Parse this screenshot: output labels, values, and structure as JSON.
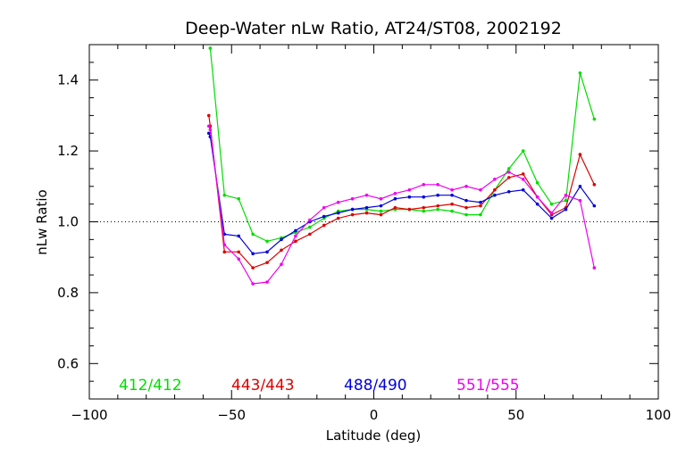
{
  "chart_data": {
    "type": "line",
    "title": "Deep-Water nLw Ratio, AT24/ST08, 2002192",
    "xlabel": "Latitude (deg)",
    "ylabel": "nLw Ratio",
    "xlim": [
      -100,
      100
    ],
    "ylim": [
      0.5,
      1.5
    ],
    "xticks": [
      -100,
      -50,
      0,
      50,
      100
    ],
    "xtick_labels": [
      "−100",
      "−50",
      "0",
      "50",
      "100"
    ],
    "yticks": [
      0.6,
      0.8,
      1.0,
      1.2,
      1.4
    ],
    "ytick_labels": [
      "0.6",
      "0.8",
      "1.0",
      "1.2",
      "1.4"
    ],
    "reference_line": 1.0,
    "grid": false,
    "legend_placement": "bottom, inside plot",
    "series": [
      {
        "name": "412/412",
        "color": "#00dd00",
        "x": [
          -57.5,
          -52.5,
          -47.5,
          -42.5,
          -37.5,
          -32.5,
          -27.5,
          -22.5,
          -17.5,
          -12.5,
          -7.5,
          -2.5,
          2.5,
          7.5,
          12.5,
          17.5,
          22.5,
          27.5,
          32.5,
          37.5,
          42.5,
          47.5,
          52.5,
          57.5,
          62.5,
          67.5,
          72.5,
          77.5
        ],
        "y": [
          1.49,
          1.075,
          1.065,
          0.965,
          0.945,
          0.955,
          0.97,
          0.985,
          1.01,
          1.03,
          1.035,
          1.035,
          1.03,
          1.035,
          1.035,
          1.03,
          1.035,
          1.03,
          1.02,
          1.02,
          1.09,
          1.15,
          1.2,
          1.11,
          1.05,
          1.06,
          1.42,
          1.29
        ]
      },
      {
        "name": "443/443",
        "color": "#dd0000",
        "x": [
          -58,
          -57.5,
          -52.5,
          -47.5,
          -42.5,
          -37.5,
          -32.5,
          -27.5,
          -22.5,
          -17.5,
          -12.5,
          -7.5,
          -2.5,
          2.5,
          7.5,
          12.5,
          17.5,
          22.5,
          27.5,
          32.5,
          37.5,
          42.5,
          47.5,
          52.5,
          57.5,
          62.5,
          67.5,
          72.5,
          77.5
        ],
        "y": [
          1.3,
          1.27,
          0.915,
          0.915,
          0.87,
          0.885,
          0.92,
          0.945,
          0.965,
          0.99,
          1.01,
          1.02,
          1.025,
          1.02,
          1.04,
          1.035,
          1.04,
          1.045,
          1.05,
          1.04,
          1.045,
          1.09,
          1.125,
          1.135,
          1.07,
          1.02,
          1.04,
          1.19,
          1.105
        ]
      },
      {
        "name": "488/490",
        "color": "#0000dd",
        "x": [
          -58,
          -57.5,
          -52.5,
          -47.5,
          -42.5,
          -37.5,
          -32.5,
          -27.5,
          -22.5,
          -17.5,
          -12.5,
          -7.5,
          -2.5,
          2.5,
          7.5,
          12.5,
          17.5,
          22.5,
          27.5,
          32.5,
          37.5,
          42.5,
          47.5,
          52.5,
          57.5,
          62.5,
          67.5,
          72.5,
          77.5
        ],
        "y": [
          1.25,
          1.24,
          0.965,
          0.96,
          0.91,
          0.915,
          0.95,
          0.975,
          1.0,
          1.015,
          1.025,
          1.035,
          1.04,
          1.045,
          1.065,
          1.07,
          1.07,
          1.075,
          1.075,
          1.06,
          1.055,
          1.075,
          1.085,
          1.09,
          1.05,
          1.01,
          1.035,
          1.1,
          1.045
        ]
      },
      {
        "name": "551/555",
        "color": "#ee00ee",
        "x": [
          -58,
          -57.5,
          -52.5,
          -47.5,
          -42.5,
          -37.5,
          -32.5,
          -27.5,
          -22.5,
          -17.5,
          -12.5,
          -7.5,
          -2.5,
          2.5,
          7.5,
          12.5,
          17.5,
          22.5,
          27.5,
          32.5,
          37.5,
          42.5,
          47.5,
          52.5,
          57.5,
          62.5,
          67.5,
          72.5,
          77.5
        ],
        "y": [
          1.27,
          1.26,
          0.935,
          0.895,
          0.825,
          0.83,
          0.88,
          0.96,
          1.005,
          1.04,
          1.055,
          1.065,
          1.075,
          1.065,
          1.08,
          1.09,
          1.105,
          1.105,
          1.09,
          1.1,
          1.09,
          1.12,
          1.14,
          1.12,
          1.07,
          1.025,
          1.075,
          1.06,
          0.87
        ]
      }
    ]
  }
}
